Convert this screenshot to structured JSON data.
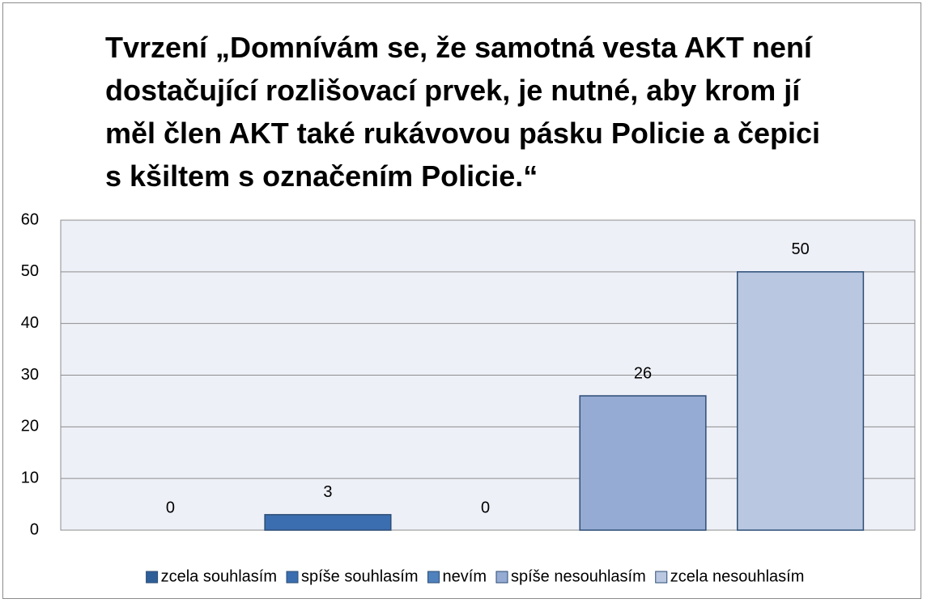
{
  "chart_data": {
    "type": "bar",
    "title": "Tvrzení „Domnívám se, že samotná vesta AKT není dostačující rozlišovací prvek, je nutné, aby krom jí měl člen AKT také rukávovou pásku Policie a čepici s kšiltem s označením Policie.“",
    "categories": [
      null
    ],
    "series": [
      {
        "name": "zcela souhlasím",
        "color": "#2f5f98",
        "values": [
          0
        ]
      },
      {
        "name": "spíše souhlasím",
        "color": "#3a6eb0",
        "values": [
          3
        ]
      },
      {
        "name": "nevím",
        "color": "#4f81bd",
        "values": [
          0
        ]
      },
      {
        "name": "spíše nesouhlasím",
        "color": "#95abd3",
        "values": [
          26
        ]
      },
      {
        "name": "zcela nesouhlasím",
        "color": "#b9c7e1",
        "values": [
          50
        ]
      }
    ],
    "ylim": [
      0,
      60
    ],
    "yticks": [
      0,
      10,
      20,
      30,
      40,
      50,
      60
    ],
    "grid": true,
    "legend": "bottom"
  }
}
